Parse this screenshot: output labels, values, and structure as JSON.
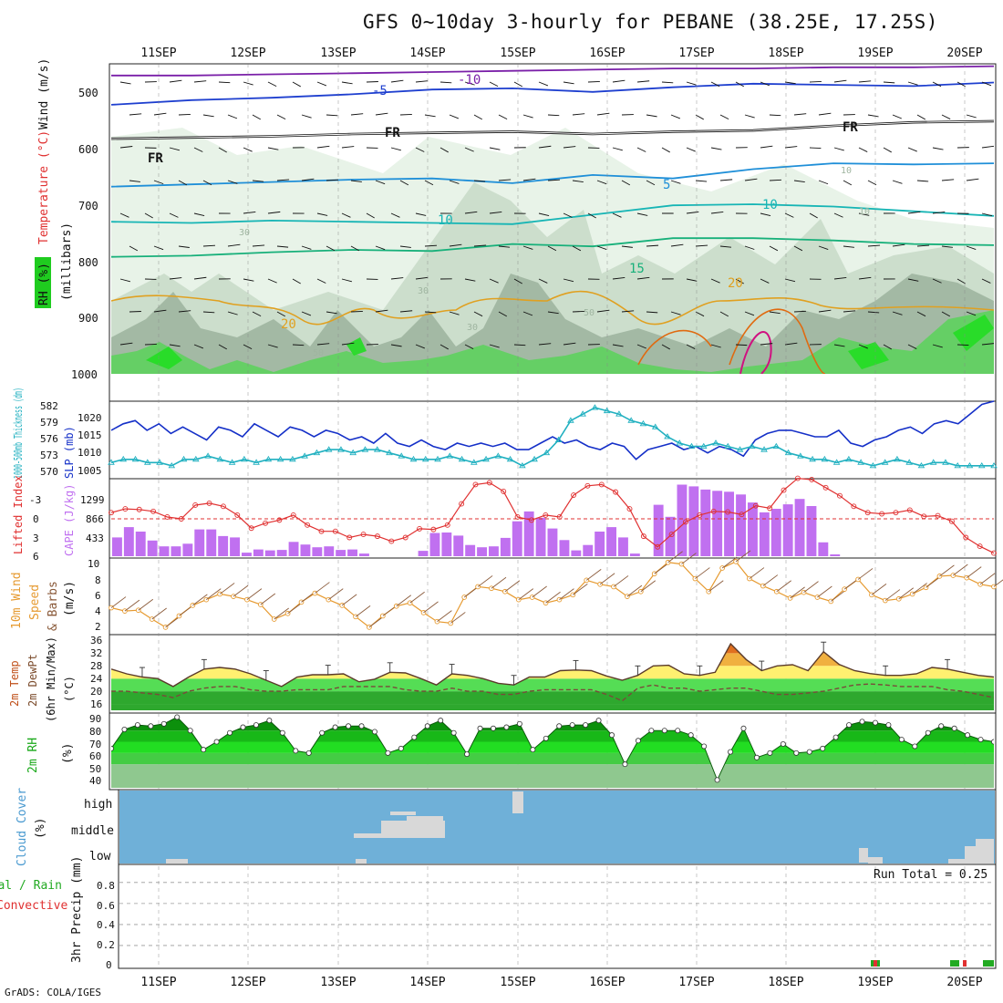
{
  "header": {
    "title": "GFS 0~10day 3-hourly for PEBANE (38.25E, 17.25S)"
  },
  "footer": {
    "credit": "GrADS: COLA/IGES"
  },
  "days": [
    "11SEP",
    "12SEP",
    "13SEP",
    "14SEP",
    "15SEP",
    "16SEP",
    "17SEP",
    "18SEP",
    "19SEP",
    "20SEP"
  ],
  "colors": {
    "rh_light": "#e6f2e6",
    "rh_mid": "#c9dcc9",
    "rh_dark": "#9fb5a0",
    "rh_green": "#5ed15e",
    "rh_bright": "#22dd22",
    "freezing": "#111111",
    "t_minus10": "#7a1fa8",
    "t_minus5": "#1e3fcf",
    "t_5": "#1f8fd8",
    "t_10": "#17b5b5",
    "t_15": "#17b07a",
    "t_20": "#e0a020",
    "t_25": "#e06a10",
    "t_30": "#d01080",
    "slp": "#1530c8",
    "thickness": "#20b0c0",
    "cape": "#c070f0",
    "li": "#e03030",
    "wind_speed": "#e69a30",
    "barb": "#8a5a3a",
    "cloud": "#6fb0d8",
    "rh2m": "#18a818"
  },
  "chart_data": [
    {
      "type": "contour",
      "panel": "upper-air",
      "title": "GFS 0~10day 3-hourly for PEBANE (38.25E, 17.25S)",
      "ylabel_rh": "RH (%)",
      "ylabel_t": "Temperature (°C)",
      "ylabel_w": "Wind (m/s)",
      "ylabel_p": "(millibars)",
      "yticks": [
        "500",
        "600",
        "700",
        "800",
        "900",
        "1000"
      ],
      "ylim": [
        470,
        1000
      ],
      "contour_labels": [
        {
          "text": "-10",
          "color": "t_minus10"
        },
        {
          "text": "-5",
          "color": "t_minus5"
        },
        {
          "text": "FR",
          "color": "freezing"
        },
        {
          "text": "FR",
          "color": "freezing"
        },
        {
          "text": "FR",
          "color": "freezing"
        },
        {
          "text": "5",
          "color": "t_5"
        },
        {
          "text": "10",
          "color": "t_10"
        },
        {
          "text": "10",
          "color": "t_10"
        },
        {
          "text": "15",
          "color": "t_15"
        },
        {
          "text": "20",
          "color": "t_20"
        },
        {
          "text": "20",
          "color": "t_20"
        },
        {
          "text": "30",
          "color": "rh_dark"
        },
        {
          "text": "30",
          "color": "rh_dark"
        },
        {
          "text": "30",
          "color": "rh_dark"
        },
        {
          "text": "50",
          "color": "rh_dark"
        },
        {
          "text": "50",
          "color": "rh_dark"
        },
        {
          "text": "10",
          "color": "rh_dark"
        },
        {
          "text": "10",
          "color": "rh_dark"
        }
      ],
      "isotherms_mb": [
        {
          "name": "-10",
          "color": "t_minus10",
          "values": [
            490,
            490,
            488,
            486,
            484,
            482,
            480,
            478,
            478,
            476,
            476,
            474
          ]
        },
        {
          "name": "-5",
          "color": "t_minus5",
          "values": [
            540,
            532,
            528,
            522,
            514,
            512,
            518,
            510,
            504,
            506,
            508,
            502
          ]
        },
        {
          "name": "FR",
          "color": "freezing",
          "values": [
            598,
            596,
            594,
            590,
            588,
            586,
            590,
            586,
            584,
            576,
            570,
            568
          ]
        },
        {
          "name": "5",
          "color": "t_5",
          "values": [
            680,
            676,
            672,
            668,
            666,
            674,
            660,
            666,
            650,
            640,
            642,
            640
          ]
        },
        {
          "name": "10",
          "color": "t_10",
          "values": [
            740,
            742,
            738,
            740,
            742,
            744,
            728,
            712,
            710,
            714,
            722,
            730
          ]
        },
        {
          "name": "15",
          "color": "t_15",
          "values": [
            800,
            798,
            792,
            788,
            790,
            778,
            782,
            768,
            768,
            772,
            778,
            780
          ]
        }
      ]
    },
    {
      "type": "line",
      "panel": "slp-thickness",
      "ylabel_left": "1000-500mb Thickness (dm)",
      "ylabel_right": "SLP (mb)",
      "yticks_left": [
        "582",
        "579",
        "576",
        "573",
        "570"
      ],
      "yticks_right": [
        "1020",
        "1015",
        "1010",
        "1005"
      ],
      "ylim": [
        1002,
        1026
      ],
      "series": [
        {
          "name": "SLP (mb)",
          "color": "slp",
          "values": [
            1017,
            1019,
            1020,
            1017,
            1019,
            1016,
            1018,
            1016,
            1014,
            1018,
            1017,
            1015,
            1019,
            1017,
            1015,
            1018,
            1017,
            1015,
            1017,
            1016,
            1014,
            1015,
            1013,
            1016,
            1013,
            1012,
            1014,
            1012,
            1011,
            1013,
            1012,
            1013,
            1012,
            1013,
            1011,
            1011,
            1013,
            1015,
            1013,
            1014,
            1012,
            1011,
            1013,
            1012,
            1008,
            1011,
            1012,
            1013,
            1011,
            1012,
            1010,
            1012,
            1011,
            1009,
            1014,
            1016,
            1017,
            1017,
            1016,
            1015,
            1015,
            1017,
            1013,
            1012,
            1014,
            1015,
            1017,
            1018,
            1016,
            1019,
            1020,
            1019,
            1022,
            1025,
            1026
          ]
        },
        {
          "name": "Thickness (dm)",
          "color": "thickness",
          "values": [
            1007,
            1008,
            1008,
            1007,
            1007,
            1006,
            1008,
            1008,
            1009,
            1008,
            1007,
            1008,
            1007,
            1008,
            1008,
            1008,
            1009,
            1010,
            1011,
            1011,
            1010,
            1011,
            1011,
            1010,
            1009,
            1008,
            1008,
            1008,
            1009,
            1008,
            1007,
            1008,
            1009,
            1008,
            1006,
            1008,
            1010,
            1014,
            1020,
            1022,
            1024,
            1023,
            1022,
            1020,
            1019,
            1018,
            1015,
            1013,
            1012,
            1012,
            1013,
            1012,
            1011,
            1012,
            1011,
            1012,
            1010,
            1009,
            1008,
            1008,
            1007,
            1008,
            1007,
            1006,
            1007,
            1008,
            1007,
            1006,
            1007,
            1007,
            1006,
            1006,
            1006,
            1006
          ]
        }
      ]
    },
    {
      "type": "bar",
      "panel": "cape-li",
      "ylabel_left": "Lifted Index",
      "ylabel_right": "CAPE (J/kg)",
      "yticks_left": [
        "-3",
        "0",
        "3",
        "6"
      ],
      "yticks_right": [
        "1299",
        "866",
        "433"
      ],
      "ylim": [
        0,
        1732
      ],
      "cape": [
        420,
        650,
        550,
        350,
        220,
        220,
        280,
        600,
        600,
        450,
        420,
        80,
        150,
        130,
        140,
        320,
        260,
        200,
        220,
        140,
        150,
        60,
        0,
        0,
        0,
        0,
        120,
        520,
        530,
        460,
        250,
        200,
        220,
        410,
        780,
        1000,
        860,
        620,
        360,
        130,
        250,
        550,
        650,
        420,
        60,
        0,
        1150,
        880,
        1600,
        1560,
        1490,
        1460,
        1440,
        1380,
        1200,
        980,
        1060,
        1160,
        1280,
        1120,
        310,
        40,
        0,
        0,
        0,
        0,
        0,
        0,
        0,
        0,
        0,
        0,
        0,
        0,
        0
      ],
      "li": [
        -1,
        -1.6,
        -1.5,
        -1.2,
        -0.3,
        0,
        -2.2,
        -2.5,
        -2,
        -0.6,
        1.5,
        0.7,
        0.2,
        -0.6,
        1,
        2,
        2,
        3,
        2.5,
        2.8,
        3.6,
        3,
        1.6,
        1.7,
        1,
        -2.4,
        -5.5,
        -5.8,
        -4.4,
        -0.3,
        0.2,
        -0.6,
        -0.3,
        -3.8,
        -5.3,
        -5.5,
        -4.3,
        -1.6,
        2.8,
        4.5,
        2.5,
        0.5,
        -0.6,
        -1.2,
        -1.1,
        -0.7,
        -2.1,
        -1.7,
        -4.6,
        -6.5,
        -6.3,
        -5,
        -3.7,
        -2,
        -1,
        -0.8,
        -1,
        -1.4,
        -0.4,
        -0.5,
        0.4,
        3,
        4.4,
        5.5
      ]
    },
    {
      "type": "line",
      "panel": "wind-10m",
      "ylabel": "10m Wind Speed & Barbs (m/s)",
      "yticks": [
        "10",
        "8",
        "6",
        "4",
        "2"
      ],
      "ylim": [
        1,
        10
      ],
      "series": [
        {
          "name": "Speed",
          "color": "wind_speed",
          "values": [
            4.2,
            3.8,
            3.9,
            2.8,
            1.8,
            3.2,
            4.5,
            5.2,
            5.9,
            5.6,
            5.2,
            4.6,
            2.8,
            3.5,
            4.9,
            6,
            5.2,
            4.5,
            3.1,
            1.8,
            3.2,
            4.4,
            4.8,
            3.6,
            2.5,
            2.3,
            5.5,
            6.8,
            6.6,
            6.2,
            5.2,
            5.5,
            4.8,
            5.2,
            5.8,
            7.6,
            7.1,
            6.8,
            5.6,
            6.2,
            8.4,
            9.8,
            9.6,
            7.8,
            6.2,
            9.1,
            9.9,
            7.8,
            6.9,
            6.2,
            5.4,
            6.1,
            5.5,
            5,
            6.5,
            7.7,
            5.8,
            5.1,
            5.3,
            5.9,
            6.7,
            8.1,
            8.2,
            7.9,
            7.1,
            6.8
          ]
        }
      ]
    },
    {
      "type": "area",
      "panel": "temp-2m",
      "ylabel": "2m Temp 2m DewPt (6hr Min/Max) (°C)",
      "yticks": [
        "36",
        "32",
        "28",
        "24",
        "20",
        "16"
      ],
      "ylim": [
        14,
        37
      ],
      "series": [
        {
          "name": "2m Temp",
          "values": [
            27,
            25.5,
            24.5,
            24,
            21.5,
            24.5,
            27,
            27.5,
            27,
            25.5,
            23.5,
            21.5,
            24.5,
            25.2,
            25.2,
            25.5,
            23,
            23.8,
            26,
            25.8,
            24,
            22,
            25.5,
            25,
            24,
            22.5,
            22,
            24.5,
            24.5,
            26.5,
            26.7,
            26.5,
            24.8,
            23.5,
            25,
            28,
            28.2,
            25.5,
            25,
            26,
            35,
            30,
            26.5,
            28,
            28.4,
            26.5,
            32.5,
            28.5,
            26.5,
            25.6,
            25,
            25,
            25.5,
            27.5,
            27,
            26,
            25,
            24.5
          ]
        },
        {
          "name": "2m DewPt",
          "values": [
            20,
            20,
            19.5,
            19,
            18,
            20,
            21,
            21.5,
            21.5,
            20.5,
            20,
            20,
            20.5,
            20.5,
            20.5,
            21.5,
            21.5,
            21.5,
            21.5,
            20.5,
            20,
            20,
            21,
            20,
            20,
            19,
            19,
            20,
            20.5,
            20.5,
            20.5,
            20.5,
            19,
            17,
            21,
            22,
            21,
            21,
            20,
            20.5,
            21,
            21,
            20,
            19,
            19,
            19.5,
            20,
            21,
            22,
            22.3,
            22,
            21.5,
            21.5,
            21.5,
            20.5,
            20,
            19,
            18
          ]
        }
      ]
    },
    {
      "type": "area",
      "panel": "rh-2m",
      "ylabel": "2m RH (%)",
      "yticks": [
        "90",
        "80",
        "70",
        "60",
        "50",
        "40"
      ],
      "ylim": [
        29,
        94
      ],
      "series": [
        {
          "name": "2m RH",
          "color": "rh2m",
          "values": [
            64,
            81,
            85,
            84,
            86,
            92,
            80,
            63,
            70,
            78,
            83,
            85,
            89,
            78,
            62,
            60,
            78,
            83,
            84,
            84,
            79,
            60,
            64,
            74,
            84,
            89,
            78,
            59,
            82,
            82,
            83,
            86,
            63,
            73,
            84,
            85,
            85,
            89,
            76,
            50,
            71,
            80,
            80,
            80,
            76,
            66,
            36,
            61,
            82,
            56,
            60,
            68,
            60,
            61,
            64,
            74,
            85,
            88,
            87,
            85,
            72,
            66,
            78,
            84,
            82,
            76,
            72,
            70
          ]
        }
      ]
    },
    {
      "type": "bar",
      "panel": "cloud-cover",
      "ylabel": "Cloud Cover (%)",
      "yticks": [
        "high",
        "middle",
        "low"
      ]
    },
    {
      "type": "bar",
      "panel": "precip",
      "ylabel": "3hr Precip (mm)",
      "legend": [
        "Total / Rain",
        "Convective"
      ],
      "yticks": [
        "0.8",
        "0.6",
        "0.4",
        "0.2",
        "0"
      ],
      "ylim": [
        0,
        0.92
      ],
      "annotation": "Run Total = 0.25"
    }
  ]
}
